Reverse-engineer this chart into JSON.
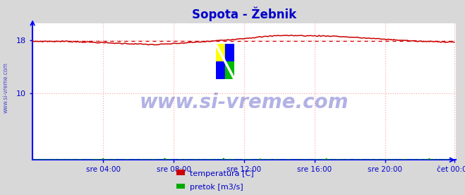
{
  "title": "Sopota - Žebnik",
  "title_color": "#0000cc",
  "title_fontsize": 12,
  "bg_color": "#d8d8d8",
  "plot_bg_color": "#ffffff",
  "grid_color": "#ffaaaa",
  "axis_color": "#0000ff",
  "tick_label_color": "#0000cc",
  "ylabel_ticks": [
    10,
    18
  ],
  "xlim": [
    0,
    288
  ],
  "ylim_min": 0,
  "ylim_max": 20.5,
  "avg_line_value": 17.82,
  "avg_line_color": "#cc0000",
  "temp_color": "#cc0000",
  "flow_color": "#00aa00",
  "watermark_text": "www.si-vreme.com",
  "watermark_color": "#0000aa",
  "watermark_alpha": 0.3,
  "side_watermark_color": "#3333cc",
  "x_tick_labels": [
    "sre 04:00",
    "sre 08:00",
    "sre 12:00",
    "sre 16:00",
    "sre 20:00",
    "čet 00:00"
  ],
  "x_tick_positions": [
    48,
    96,
    144,
    192,
    240,
    287
  ],
  "legend_temp": "temperatura [C]",
  "legend_flow": "pretok [m3/s]",
  "logo_colors": [
    "#ffff00",
    "#0000ff",
    "#00ff00",
    "#0000ff"
  ]
}
